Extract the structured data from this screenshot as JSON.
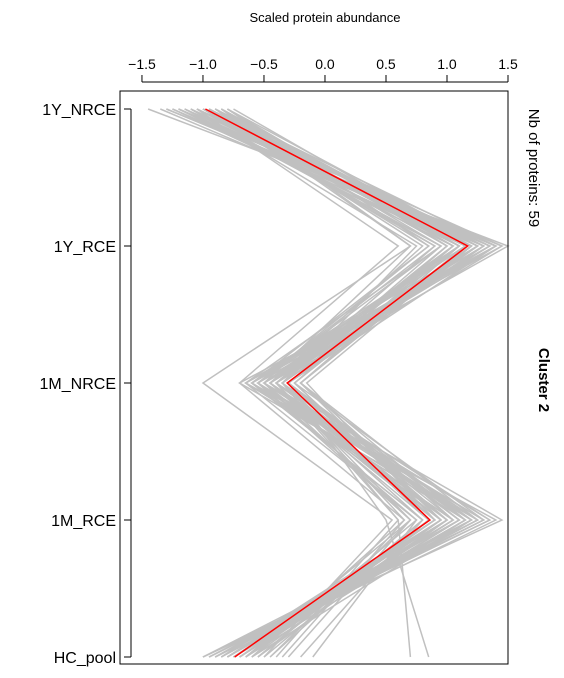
{
  "chart_data": {
    "type": "line",
    "xlabel": "Scaled protein abundance",
    "ylabel": "",
    "xlim": [
      -1.68,
      1.5
    ],
    "x_ticks": [
      -1.5,
      -1.0,
      -0.5,
      0.0,
      0.5,
      1.0,
      1.5
    ],
    "x_tick_labels": [
      "−1.5",
      "−1.0",
      "−0.5",
      "0.0",
      "0.5",
      "1.0",
      "1.5"
    ],
    "categories": [
      "1Y_NRCE",
      "1Y_RCE",
      "1M_NRCE",
      "1M_RCE",
      "HC_pool"
    ],
    "x_axis_position": "top",
    "grid": false,
    "side_annotation": "Nb of proteins: 59",
    "cluster_label": "Cluster 2",
    "series": [
      {
        "role": "profile",
        "color": "#c0c0c0",
        "values": [
          -1.45,
          1.5,
          -0.5,
          1.45,
          -1.0
        ]
      },
      {
        "role": "profile",
        "color": "#c0c0c0",
        "values": [
          -1.3,
          1.45,
          -0.6,
          1.3,
          -0.95
        ]
      },
      {
        "role": "profile",
        "color": "#c0c0c0",
        "values": [
          -1.2,
          1.4,
          -0.7,
          1.25,
          -0.85
        ]
      },
      {
        "role": "profile",
        "color": "#c0c0c0",
        "values": [
          -1.1,
          1.4,
          -0.55,
          1.2,
          -0.9
        ]
      },
      {
        "role": "profile",
        "color": "#c0c0c0",
        "values": [
          -1.05,
          1.35,
          -0.45,
          1.15,
          -0.8
        ]
      },
      {
        "role": "profile",
        "color": "#c0c0c0",
        "values": [
          -1.0,
          1.3,
          -0.4,
          1.1,
          -0.75
        ]
      },
      {
        "role": "profile",
        "color": "#c0c0c0",
        "values": [
          -0.95,
          1.25,
          -0.35,
          1.05,
          -0.7
        ]
      },
      {
        "role": "profile",
        "color": "#c0c0c0",
        "values": [
          -0.9,
          1.2,
          -0.3,
          1.0,
          -0.65
        ]
      },
      {
        "role": "profile",
        "color": "#c0c0c0",
        "values": [
          -0.85,
          1.15,
          -0.25,
          0.95,
          -0.7
        ]
      },
      {
        "role": "profile",
        "color": "#c0c0c0",
        "values": [
          -0.8,
          1.1,
          -0.2,
          0.95,
          -0.75
        ]
      },
      {
        "role": "profile",
        "color": "#c0c0c0",
        "values": [
          -0.75,
          1.2,
          -0.15,
          0.9,
          -0.8
        ]
      },
      {
        "role": "profile",
        "color": "#c0c0c0",
        "values": [
          -1.15,
          1.3,
          -0.35,
          1.2,
          -0.6
        ]
      },
      {
        "role": "profile",
        "color": "#c0c0c0",
        "values": [
          -1.25,
          1.25,
          -0.45,
          1.0,
          -0.55
        ]
      },
      {
        "role": "profile",
        "color": "#c0c0c0",
        "values": [
          -0.9,
          1.05,
          -0.5,
          0.85,
          -0.5
        ]
      },
      {
        "role": "profile",
        "color": "#c0c0c0",
        "values": [
          -1.05,
          1.1,
          -0.6,
          0.8,
          -0.45
        ]
      },
      {
        "role": "profile",
        "color": "#c0c0c0",
        "values": [
          -0.95,
          0.95,
          -0.65,
          0.75,
          -0.6
        ]
      },
      {
        "role": "profile",
        "color": "#c0c0c0",
        "values": [
          -1.1,
          0.9,
          -0.4,
          0.7,
          -0.65
        ]
      },
      {
        "role": "profile",
        "color": "#c0c0c0",
        "values": [
          -0.85,
          1.0,
          -0.3,
          1.1,
          -0.9
        ]
      },
      {
        "role": "profile",
        "color": "#c0c0c0",
        "values": [
          -1.0,
          1.15,
          -0.25,
          1.3,
          -1.0
        ]
      },
      {
        "role": "profile",
        "color": "#c0c0c0",
        "values": [
          -1.2,
          1.2,
          -0.2,
          1.25,
          -0.95
        ]
      },
      {
        "role": "profile",
        "color": "#c0c0c0",
        "values": [
          -0.8,
          0.85,
          -0.55,
          0.95,
          -0.85
        ]
      },
      {
        "role": "profile",
        "color": "#c0c0c0",
        "values": [
          -0.95,
          0.8,
          -0.45,
          0.9,
          -0.7
        ]
      },
      {
        "role": "profile",
        "color": "#c0c0c0",
        "values": [
          -1.1,
          0.75,
          -0.35,
          0.6,
          -0.4
        ]
      },
      {
        "role": "profile",
        "color": "#c0c0c0",
        "values": [
          -0.9,
          0.7,
          -1.0,
          0.55,
          -0.5
        ]
      },
      {
        "role": "profile",
        "color": "#c0c0c0",
        "values": [
          -1.05,
          0.6,
          -0.7,
          0.65,
          -0.6
        ]
      },
      {
        "role": "profile",
        "color": "#c0c0c0",
        "values": [
          -0.85,
          0.7,
          -0.5,
          0.7,
          -0.3
        ]
      },
      {
        "role": "profile",
        "color": "#c0c0c0",
        "values": [
          -1.0,
          0.85,
          -0.6,
          0.8,
          -0.2
        ]
      },
      {
        "role": "profile",
        "color": "#c0c0c0",
        "values": [
          -1.15,
          0.95,
          -0.55,
          0.75,
          -0.1
        ]
      },
      {
        "role": "profile",
        "color": "#c0c0c0",
        "values": [
          -0.9,
          1.05,
          -0.4,
          0.6,
          0.7
        ]
      },
      {
        "role": "profile",
        "color": "#c0c0c0",
        "values": [
          -1.0,
          1.1,
          -0.3,
          0.5,
          0.85
        ]
      },
      {
        "role": "profile",
        "color": "#c0c0c0",
        "values": [
          -0.85,
          1.25,
          -0.5,
          1.35,
          -1.0
        ]
      },
      {
        "role": "profile",
        "color": "#c0c0c0",
        "values": [
          -1.25,
          1.35,
          -0.65,
          1.4,
          -0.9
        ]
      },
      {
        "role": "profile",
        "color": "#c0c0c0",
        "values": [
          -1.3,
          1.4,
          -0.3,
          1.15,
          -0.8
        ]
      },
      {
        "role": "profile",
        "color": "#c0c0c0",
        "values": [
          -0.95,
          1.15,
          -0.2,
          1.05,
          -0.75
        ]
      },
      {
        "role": "profile",
        "color": "#c0c0c0",
        "values": [
          -1.05,
          1.2,
          -0.45,
          1.0,
          -0.85
        ]
      },
      {
        "role": "profile",
        "color": "#c0c0c0",
        "values": [
          -1.1,
          1.25,
          -0.35,
          0.85,
          -0.65
        ]
      },
      {
        "role": "profile",
        "color": "#c0c0c0",
        "values": [
          -0.8,
          1.3,
          -0.4,
          1.1,
          -0.7
        ]
      },
      {
        "role": "profile",
        "color": "#c0c0c0",
        "values": [
          -1.2,
          1.1,
          -0.5,
          1.2,
          -0.75
        ]
      },
      {
        "role": "profile",
        "color": "#c0c0c0",
        "values": [
          -0.95,
          1.05,
          -0.25,
          0.95,
          -0.8
        ]
      },
      {
        "role": "profile",
        "color": "#c0c0c0",
        "values": [
          -1.0,
          1.0,
          -0.35,
          0.9,
          -0.85
        ]
      },
      {
        "role": "profile",
        "color": "#c0c0c0",
        "values": [
          -0.9,
          1.4,
          -0.45,
          1.25,
          -0.95
        ]
      },
      {
        "role": "profile",
        "color": "#c0c0c0",
        "values": [
          -1.15,
          1.35,
          -0.55,
          1.3,
          -0.9
        ]
      },
      {
        "role": "profile",
        "color": "#c0c0c0",
        "values": [
          -1.05,
          1.25,
          -0.65,
          1.15,
          -0.8
        ]
      },
      {
        "role": "profile",
        "color": "#c0c0c0",
        "values": [
          -0.85,
          1.15,
          -0.6,
          1.05,
          -0.7
        ]
      },
      {
        "role": "profile",
        "color": "#c0c0c0",
        "values": [
          -1.2,
          1.05,
          -0.45,
          0.95,
          -0.6
        ]
      },
      {
        "role": "profile",
        "color": "#c0c0c0",
        "values": [
          -1.1,
          0.95,
          -0.35,
          0.85,
          -0.55
        ]
      },
      {
        "role": "profile",
        "color": "#c0c0c0",
        "values": [
          -0.95,
          1.3,
          -0.3,
          1.2,
          -0.95
        ]
      },
      {
        "role": "profile",
        "color": "#c0c0c0",
        "values": [
          -1.0,
          1.2,
          -0.4,
          1.1,
          -0.9
        ]
      },
      {
        "role": "profile",
        "color": "#c0c0c0",
        "values": [
          -0.9,
          1.1,
          -0.55,
          1.0,
          -0.85
        ]
      },
      {
        "role": "profile",
        "color": "#c0c0c0",
        "values": [
          -1.25,
          1.15,
          -0.5,
          0.9,
          -0.75
        ]
      },
      {
        "role": "profile",
        "color": "#c0c0c0",
        "values": [
          -1.35,
          1.3,
          -0.6,
          1.05,
          -0.8
        ]
      },
      {
        "role": "profile",
        "color": "#c0c0c0",
        "values": [
          -0.85,
          1.2,
          -0.2,
          1.15,
          -0.65
        ]
      },
      {
        "role": "profile",
        "color": "#c0c0c0",
        "values": [
          -1.05,
          1.45,
          -0.4,
          1.35,
          -0.95
        ]
      },
      {
        "role": "profile",
        "color": "#c0c0c0",
        "values": [
          -0.95,
          1.35,
          -0.5,
          1.25,
          -0.9
        ]
      },
      {
        "role": "profile",
        "color": "#c0c0c0",
        "values": [
          -1.15,
          1.25,
          -0.3,
          1.0,
          -0.7
        ]
      },
      {
        "role": "profile",
        "color": "#c0c0c0",
        "values": [
          -0.9,
          1.1,
          -0.45,
          0.8,
          -0.55
        ]
      },
      {
        "role": "profile",
        "color": "#c0c0c0",
        "values": [
          -1.0,
          0.9,
          -0.55,
          0.7,
          -0.45
        ]
      },
      {
        "role": "profile",
        "color": "#c0c0c0",
        "values": [
          -1.2,
          1.4,
          -0.65,
          1.2,
          -1.0
        ]
      },
      {
        "role": "profile",
        "color": "#c0c0c0",
        "values": [
          -0.8,
          1.0,
          -0.4,
          0.65,
          -0.35
        ]
      },
      {
        "role": "mean",
        "color": "#ff0000",
        "values": [
          -0.98,
          1.17,
          -0.31,
          0.86,
          -0.74
        ]
      }
    ]
  }
}
